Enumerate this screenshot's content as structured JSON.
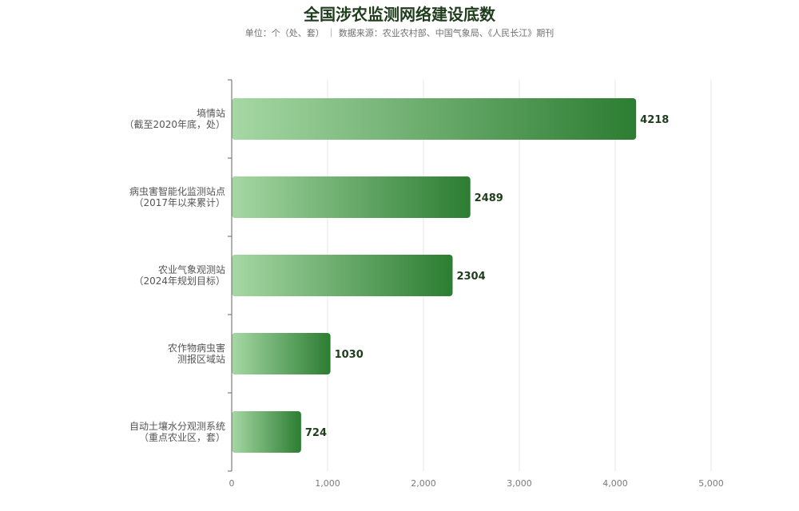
{
  "chart_data": {
    "type": "bar",
    "orientation": "horizontal",
    "title": "全国涉农监测网络建设底数",
    "subtitle": "单位：个（处、套） ｜ 数据来源：农业农村部、中国气象局、《人民长江》期刊",
    "categories": [
      [
        "墒情站",
        "（截至2020年底，处）"
      ],
      [
        "病虫害智能化监测站点",
        "（2017年以来累计）"
      ],
      [
        "农业气象观测站",
        "（2024年规划目标）"
      ],
      [
        "农作物病虫害",
        "测报区域站"
      ],
      [
        "自动土壤水分观测系统",
        "（重点农业区，套）"
      ]
    ],
    "values": [
      4218,
      2489,
      2304,
      1030,
      724
    ],
    "value_labels": [
      "4218",
      "2489",
      "2304",
      "1030",
      "724"
    ],
    "xlim": [
      0,
      5000
    ],
    "xticks": [
      0,
      1000,
      2000,
      3000,
      4000,
      5000
    ],
    "xtick_labels": [
      "0",
      "1,000",
      "2,000",
      "3,000",
      "4,000",
      "5,000"
    ],
    "grid": true,
    "colors": {
      "bar_start": "#a6d8a4",
      "bar_end": "#2c7d32",
      "grid": "#e6e6e6",
      "axis": "#666666",
      "title": "#1f3d1c"
    }
  }
}
